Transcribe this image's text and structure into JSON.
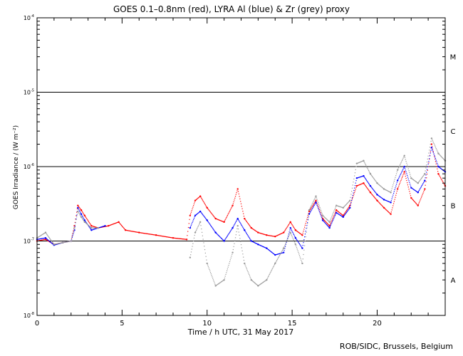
{
  "chart_data": {
    "type": "scatter",
    "title": "GOES 0.1–0.8nm (red), LYRA Al (blue) & Zr (grey) proxy",
    "xlabel": "Time / h UTC, 31 May 2017",
    "ylabel": "GOES Irradiance / (W m⁻²)",
    "xlim": [
      0,
      24
    ],
    "ylim": [
      1e-08,
      0.0001
    ],
    "yscale": "log",
    "x_ticks": [
      0,
      5,
      10,
      15,
      20
    ],
    "y_ticks": [
      {
        "mantissa": "10",
        "exp": "-8"
      },
      {
        "mantissa": "10",
        "exp": "-7"
      },
      {
        "mantissa": "10",
        "exp": "-6"
      },
      {
        "mantissa": "10",
        "exp": "-5"
      },
      {
        "mantissa": "10",
        "exp": "-4"
      }
    ],
    "flare_class_lines": [
      1e-07,
      1e-06,
      1e-05
    ],
    "flare_classes": [
      {
        "label": "A",
        "value": 3e-08
      },
      {
        "label": "B",
        "value": 3e-07
      },
      {
        "label": "C",
        "value": 3e-06
      },
      {
        "label": "M",
        "value": 3e-05
      }
    ],
    "series": [
      {
        "name": "GOES 0.1-0.8nm",
        "color": "#ff0000",
        "points": [
          [
            0,
            1e-07
          ],
          [
            0.5,
            1.05e-07
          ],
          [
            1.0,
            9e-08
          ],
          [
            1.5,
            9.5e-08
          ],
          [
            2.0,
            1e-07
          ],
          [
            2.2,
            1.6e-07
          ],
          [
            2.4,
            3e-07
          ],
          [
            2.6,
            2.6e-07
          ],
          [
            2.8,
            2.2e-07
          ],
          [
            3.2,
            1.6e-07
          ],
          [
            3.6,
            1.5e-07
          ],
          [
            4.2,
            1.6e-07
          ],
          [
            4.8,
            1.8e-07
          ],
          [
            5.2,
            1.4e-07
          ],
          [
            6.0,
            1.3e-07
          ],
          [
            7.0,
            1.2e-07
          ],
          [
            8.0,
            1.1e-07
          ],
          [
            8.8,
            1.05e-07
          ],
          [
            9.0,
            2.2e-07
          ],
          [
            9.3,
            3.5e-07
          ],
          [
            9.6,
            4e-07
          ],
          [
            10.0,
            2.8e-07
          ],
          [
            10.5,
            2e-07
          ],
          [
            11.0,
            1.8e-07
          ],
          [
            11.5,
            3e-07
          ],
          [
            11.8,
            5e-07
          ],
          [
            12.2,
            2e-07
          ],
          [
            12.6,
            1.5e-07
          ],
          [
            13.0,
            1.3e-07
          ],
          [
            13.5,
            1.2e-07
          ],
          [
            14.0,
            1.15e-07
          ],
          [
            14.5,
            1.3e-07
          ],
          [
            14.9,
            1.8e-07
          ],
          [
            15.2,
            1.4e-07
          ],
          [
            15.6,
            1.2e-07
          ],
          [
            16.0,
            2.5e-07
          ],
          [
            16.4,
            3.5e-07
          ],
          [
            16.8,
            2e-07
          ],
          [
            17.2,
            1.6e-07
          ],
          [
            17.6,
            2.6e-07
          ],
          [
            18.0,
            2.2e-07
          ],
          [
            18.4,
            3e-07
          ],
          [
            18.8,
            5.5e-07
          ],
          [
            19.2,
            6e-07
          ],
          [
            19.6,
            4.5e-07
          ],
          [
            20.0,
            3.5e-07
          ],
          [
            20.4,
            2.8e-07
          ],
          [
            20.8,
            2.3e-07
          ],
          [
            21.2,
            5e-07
          ],
          [
            21.6,
            8.5e-07
          ],
          [
            22.0,
            3.8e-07
          ],
          [
            22.4,
            3e-07
          ],
          [
            22.8,
            5e-07
          ],
          [
            23.2,
            2e-06
          ],
          [
            23.6,
            8e-07
          ],
          [
            24,
            5.5e-07
          ]
        ]
      },
      {
        "name": "LYRA Al proxy",
        "color": "#0000ff",
        "points": [
          [
            0,
            1.05e-07
          ],
          [
            0.5,
            1.1e-07
          ],
          [
            1.0,
            8.8e-08
          ],
          [
            1.5,
            9.5e-08
          ],
          [
            2.0,
            1e-07
          ],
          [
            2.2,
            1.4e-07
          ],
          [
            2.4,
            2.8e-07
          ],
          [
            2.6,
            2.3e-07
          ],
          [
            2.8,
            1.9e-07
          ],
          [
            3.2,
            1.4e-07
          ],
          [
            3.6,
            1.5e-07
          ],
          [
            4.0,
            1.6e-07
          ],
          [
            9.0,
            1.5e-07
          ],
          [
            9.3,
            2.2e-07
          ],
          [
            9.6,
            2.5e-07
          ],
          [
            10.0,
            1.9e-07
          ],
          [
            10.5,
            1.3e-07
          ],
          [
            11.0,
            1e-07
          ],
          [
            11.5,
            1.5e-07
          ],
          [
            11.8,
            2e-07
          ],
          [
            12.2,
            1.4e-07
          ],
          [
            12.6,
            1e-07
          ],
          [
            13.0,
            9e-08
          ],
          [
            13.5,
            8e-08
          ],
          [
            14.0,
            6.5e-08
          ],
          [
            14.5,
            7e-08
          ],
          [
            14.9,
            1.5e-07
          ],
          [
            15.2,
            1.1e-07
          ],
          [
            15.6,
            8e-08
          ],
          [
            16.0,
            2.3e-07
          ],
          [
            16.4,
            3.3e-07
          ],
          [
            16.8,
            1.9e-07
          ],
          [
            17.2,
            1.5e-07
          ],
          [
            17.6,
            2.4e-07
          ],
          [
            18.0,
            2.1e-07
          ],
          [
            18.4,
            2.8e-07
          ],
          [
            18.8,
            7e-07
          ],
          [
            19.2,
            7.5e-07
          ],
          [
            19.6,
            5.5e-07
          ],
          [
            20.0,
            4.2e-07
          ],
          [
            20.4,
            3.6e-07
          ],
          [
            20.8,
            3.3e-07
          ],
          [
            21.2,
            6.5e-07
          ],
          [
            21.6,
            1e-06
          ],
          [
            22.0,
            5.2e-07
          ],
          [
            22.4,
            4.5e-07
          ],
          [
            22.8,
            6.5e-07
          ],
          [
            23.2,
            1.8e-06
          ],
          [
            23.6,
            1e-06
          ],
          [
            24,
            8.5e-07
          ]
        ]
      },
      {
        "name": "LYRA Zr proxy",
        "color": "#999999",
        "points": [
          [
            0,
            1.1e-07
          ],
          [
            0.5,
            1.3e-07
          ],
          [
            1.0,
            9e-08
          ],
          [
            1.5,
            9.5e-08
          ],
          [
            2.0,
            1e-07
          ],
          [
            2.2,
            1.5e-07
          ],
          [
            2.4,
            2.5e-07
          ],
          [
            2.6,
            2.1e-07
          ],
          [
            2.8,
            1.8e-07
          ],
          [
            3.2,
            1.5e-07
          ],
          [
            3.6,
            1.5e-07
          ],
          [
            9.0,
            6e-08
          ],
          [
            9.3,
            1.3e-07
          ],
          [
            9.6,
            1.8e-07
          ],
          [
            10.0,
            5e-08
          ],
          [
            10.5,
            2.5e-08
          ],
          [
            11.0,
            3e-08
          ],
          [
            11.5,
            7e-08
          ],
          [
            11.8,
            1.6e-07
          ],
          [
            12.2,
            5e-08
          ],
          [
            12.6,
            3e-08
          ],
          [
            13.0,
            2.5e-08
          ],
          [
            13.5,
            3e-08
          ],
          [
            14.0,
            5e-08
          ],
          [
            14.5,
            8e-08
          ],
          [
            14.9,
            1.3e-07
          ],
          [
            15.2,
            9e-08
          ],
          [
            15.6,
            5e-08
          ],
          [
            16.0,
            2.6e-07
          ],
          [
            16.4,
            4e-07
          ],
          [
            16.8,
            2.2e-07
          ],
          [
            17.2,
            1.8e-07
          ],
          [
            17.6,
            3e-07
          ],
          [
            18.0,
            2.8e-07
          ],
          [
            18.4,
            3.5e-07
          ],
          [
            18.8,
            1.1e-06
          ],
          [
            19.2,
            1.2e-06
          ],
          [
            19.6,
            8e-07
          ],
          [
            20.0,
            6e-07
          ],
          [
            20.4,
            5e-07
          ],
          [
            20.8,
            4.5e-07
          ],
          [
            21.2,
            9e-07
          ],
          [
            21.6,
            1.4e-06
          ],
          [
            22.0,
            7e-07
          ],
          [
            22.4,
            6e-07
          ],
          [
            22.8,
            8e-07
          ],
          [
            23.2,
            2.4e-06
          ],
          [
            23.6,
            1.5e-06
          ],
          [
            24,
            1.2e-06
          ]
        ]
      }
    ]
  },
  "footer": {
    "credit": "ROB/SIDC, Brussels, Belgium"
  }
}
